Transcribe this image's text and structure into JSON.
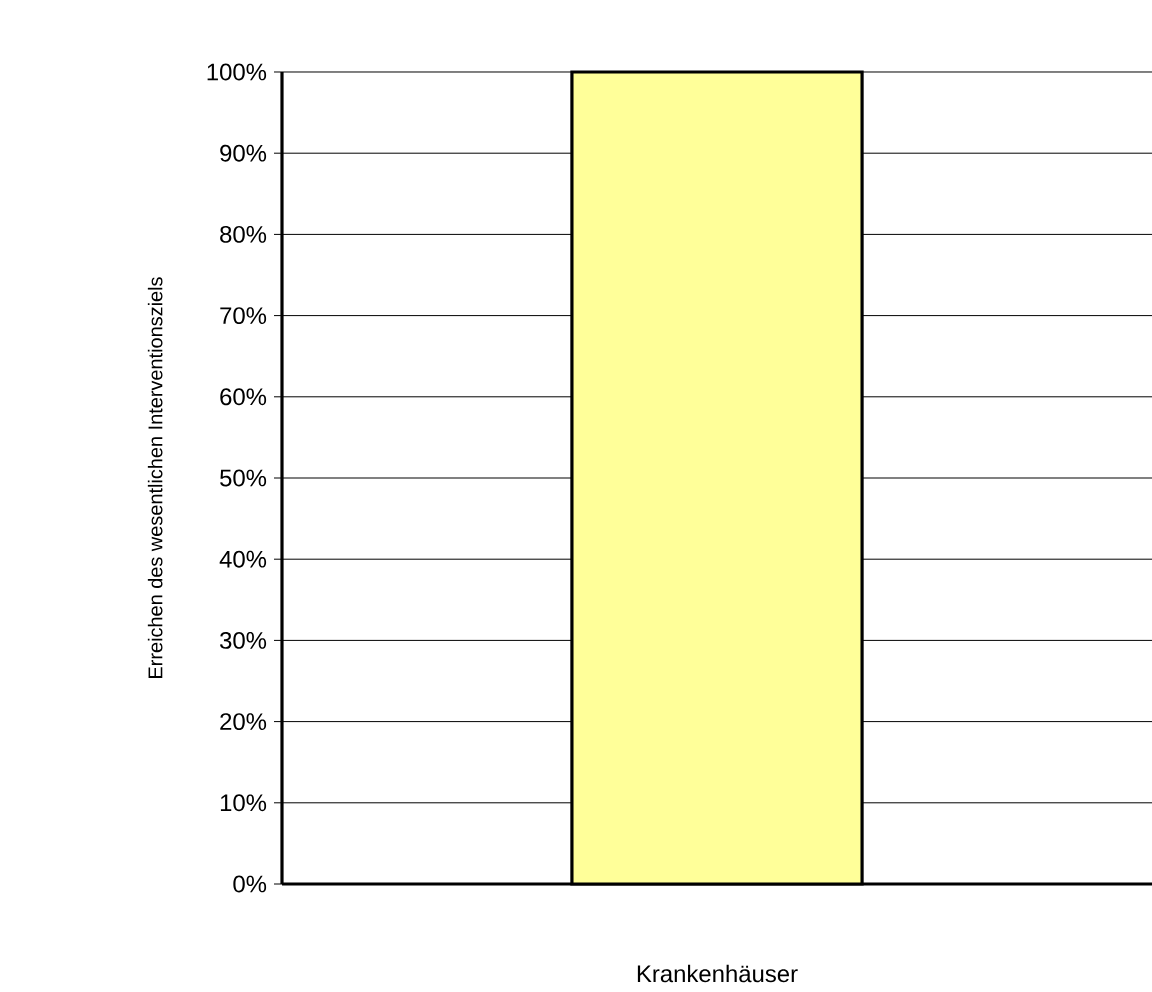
{
  "chart_data": {
    "type": "bar",
    "ylabel": "Erreichen des wesentlichen Interventionsziels",
    "xlabel": "Krankenhäuser",
    "categories": [
      null
    ],
    "values": [
      100
    ],
    "color": "#ffff99",
    "ylim": [
      0,
      100
    ],
    "yticks": [
      {
        "value": 0,
        "label": "0%"
      },
      {
        "value": 10,
        "label": "10%"
      },
      {
        "value": 20,
        "label": "20%"
      },
      {
        "value": 30,
        "label": "30%"
      },
      {
        "value": 40,
        "label": "40%"
      },
      {
        "value": 50,
        "label": "50%"
      },
      {
        "value": 60,
        "label": "60%"
      },
      {
        "value": 70,
        "label": "70%"
      },
      {
        "value": 80,
        "label": "80%"
      },
      {
        "value": 90,
        "label": "90%"
      },
      {
        "value": 100,
        "label": "100%"
      }
    ],
    "grid": "y"
  }
}
